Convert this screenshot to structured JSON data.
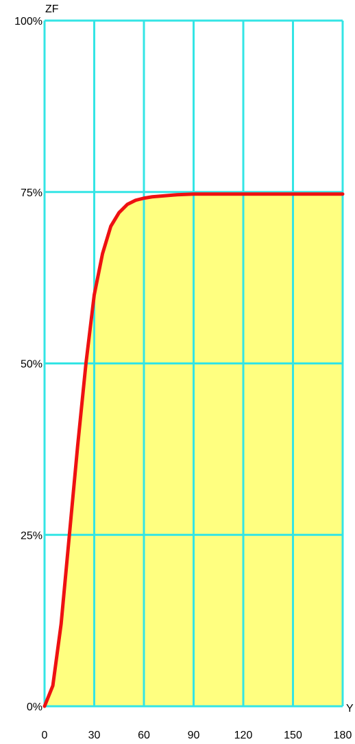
{
  "chart_data": {
    "type": "area",
    "title": "",
    "xlabel": "Y",
    "ylabel": "ZF",
    "xlim": [
      0,
      180
    ],
    "ylim": [
      0,
      100
    ],
    "x_ticks": [
      "0",
      "30",
      "60",
      "90",
      "120",
      "150",
      "180"
    ],
    "y_ticks": [
      "0%",
      "25%",
      "50%",
      "75%",
      "100%"
    ],
    "grid": true,
    "series": [
      {
        "x": [
          0,
          5,
          10,
          15,
          20,
          25,
          30,
          35,
          40,
          45,
          50,
          55,
          60,
          65,
          70,
          80,
          90,
          120,
          150,
          180
        ],
        "values": [
          0,
          3,
          12,
          25,
          38,
          50,
          60,
          66,
          70,
          72,
          73.2,
          73.8,
          74.1,
          74.3,
          74.4,
          74.6,
          74.7,
          74.7,
          74.7,
          74.7
        ]
      }
    ],
    "colors": {
      "line": "#ee1111",
      "fill": "#ffff80",
      "grid": "#33e5e5",
      "text": "#000000"
    }
  }
}
